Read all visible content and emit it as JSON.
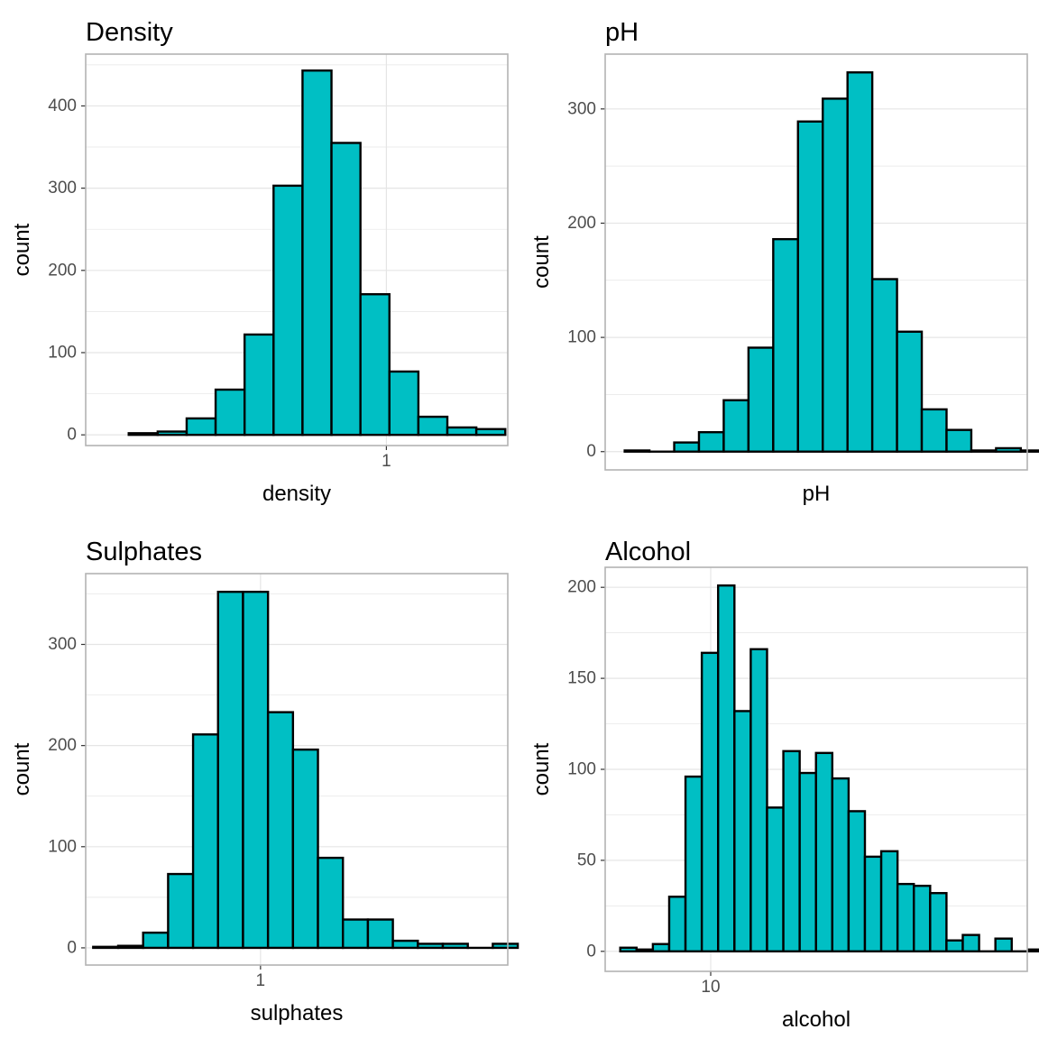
{
  "colors": {
    "bar_fill": "#00BFC4",
    "bar_stroke": "#000000",
    "grid": "#e5e5e5",
    "panel_border": "#b3b3b3"
  },
  "chart_data": [
    {
      "type": "bar",
      "title": "Density",
      "xlabel": "density",
      "ylabel": "count",
      "grid": true,
      "x_ticks": [
        {
          "label": "1",
          "value": 1
        }
      ],
      "y_ticks": [
        0,
        100,
        200,
        300,
        400
      ],
      "ylim": [
        -13,
        463
      ],
      "xlim": [
        0.9891,
        1.0044
      ],
      "bin_width": 0.00105,
      "bin_start": 0.99066,
      "values": [
        2,
        4,
        20,
        55,
        122,
        303,
        443,
        355,
        171,
        77,
        22,
        9,
        7
      ]
    },
    {
      "type": "bar",
      "title": "pH",
      "xlabel": "pH",
      "ylabel": "count",
      "grid": true,
      "x_ticks": [],
      "y_ticks": [
        0,
        100,
        200,
        300
      ],
      "ylim": [
        -16,
        348
      ],
      "xlim": [
        2.86,
        4.05
      ],
      "bin_width": 0.0698,
      "bin_start": 2.915,
      "values": [
        1,
        0,
        8,
        17,
        45,
        91,
        186,
        289,
        309,
        332,
        151,
        105,
        37,
        19,
        1,
        3,
        1
      ]
    },
    {
      "type": "bar",
      "title": "Sulphates",
      "xlabel": "sulphates",
      "ylabel": "count",
      "grid": true,
      "x_ticks": [
        {
          "label": "1",
          "value": 1
        }
      ],
      "y_ticks": [
        0,
        100,
        200,
        300
      ],
      "ylim": [
        -17,
        370
      ],
      "xlim": [
        0.3,
        1.99
      ],
      "bin_width": 0.1,
      "bin_start": 0.33,
      "values": [
        1,
        2,
        15,
        73,
        211,
        352,
        352,
        233,
        196,
        89,
        28,
        28,
        7,
        4,
        4,
        0,
        4
      ]
    },
    {
      "type": "bar",
      "title": "Alcohol",
      "xlabel": "alcohol",
      "ylabel": "count",
      "grid": true,
      "x_ticks": [
        {
          "label": "10",
          "value": 10
        }
      ],
      "y_ticks": [
        0,
        50,
        100,
        150,
        200
      ],
      "ylim": [
        -11,
        211
      ],
      "xlim": [
        8.25,
        15.25
      ],
      "bin_width": 0.2705,
      "bin_start": 8.5,
      "values": [
        2,
        1,
        4,
        30,
        96,
        164,
        201,
        132,
        166,
        79,
        110,
        98,
        109,
        95,
        77,
        52,
        55,
        37,
        36,
        32,
        6,
        9,
        0,
        7,
        0,
        1
      ]
    }
  ]
}
